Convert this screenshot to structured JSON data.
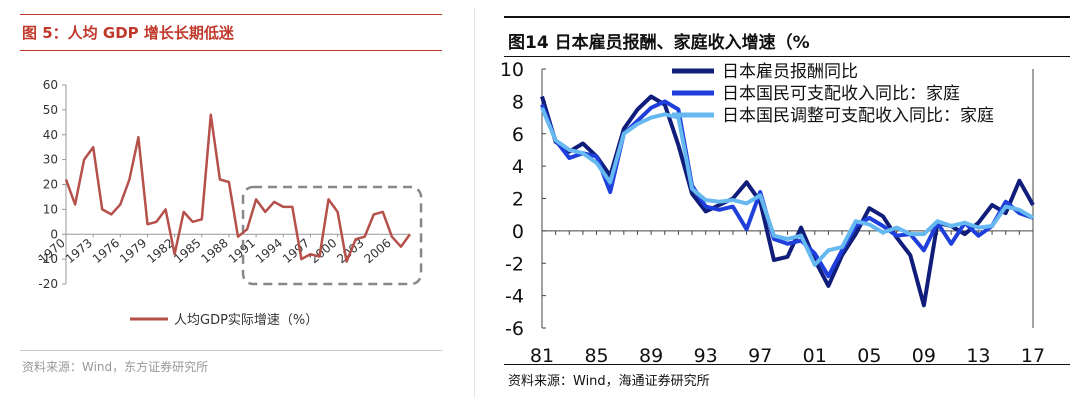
{
  "left": {
    "title": "图 5：人均 GDP 增长长期低迷",
    "source": "资料来源：Wind，东方证券研究所",
    "accent": "#c0392b"
  },
  "right": {
    "title": "图14 日本雇员报酬、家庭收入增速（%",
    "source": "资料来源：Wind，海通证券研究所"
  },
  "chart_data": [
    {
      "type": "line",
      "title": "",
      "xlabel": "",
      "ylabel": "",
      "ylim": [
        -20,
        60
      ],
      "yticks": [
        -20,
        -10,
        0,
        10,
        20,
        30,
        40,
        50,
        60
      ],
      "xticks": [
        "1970",
        "1973",
        "1976",
        "1979",
        "1982",
        "1985",
        "1988",
        "1991",
        "1994",
        "1997",
        "2000",
        "2003",
        "2006"
      ],
      "grid": false,
      "legend": "bottom",
      "highlight_box": {
        "from": 1990,
        "to": 2009
      },
      "series": [
        {
          "name": "人均GDP实际增速（%）",
          "color": "#b5504a",
          "x": [
            1970,
            1971,
            1972,
            1973,
            1974,
            1975,
            1976,
            1977,
            1978,
            1979,
            1980,
            1981,
            1982,
            1983,
            1984,
            1985,
            1986,
            1987,
            1988,
            1989,
            1990,
            1991,
            1992,
            1993,
            1994,
            1995,
            1996,
            1997,
            1998,
            1999,
            2000,
            2001,
            2002,
            2003,
            2004,
            2005,
            2006,
            2007,
            2008
          ],
          "values": [
            22,
            12,
            30,
            35,
            10,
            8,
            12,
            22,
            39,
            4,
            5,
            10,
            -8,
            9,
            5,
            6,
            48,
            22,
            21,
            -1,
            2,
            14,
            9,
            13,
            11,
            11,
            -10,
            -8,
            -9,
            14,
            9,
            -11,
            -2,
            -1,
            8,
            9,
            -1,
            -5,
            0
          ]
        }
      ]
    },
    {
      "type": "line",
      "title": "",
      "xlabel": "",
      "ylabel": "",
      "ylim": [
        -6,
        10
      ],
      "yticks": [
        -6,
        -4,
        -2,
        0,
        2,
        4,
        6,
        8,
        10
      ],
      "xticks": [
        "81",
        "85",
        "89",
        "93",
        "97",
        "01",
        "05",
        "09",
        "13",
        "17"
      ],
      "grid": false,
      "legend": "top",
      "series": [
        {
          "name": "日本雇员报酬同比",
          "color": "#101d7a",
          "x": [
            1981,
            1982,
            1983,
            1984,
            1985,
            1986,
            1987,
            1988,
            1989,
            1990,
            1991,
            1992,
            1993,
            1994,
            1995,
            1996,
            1997,
            1998,
            1999,
            2000,
            2001,
            2002,
            2003,
            2004,
            2005,
            2006,
            2007,
            2008,
            2009,
            2010,
            2011,
            2012,
            2013,
            2014,
            2015,
            2016,
            2017
          ],
          "values": [
            8.3,
            5.5,
            4.9,
            5.4,
            4.6,
            3.4,
            6.3,
            7.5,
            8.3,
            7.8,
            5.3,
            2.3,
            1.2,
            1.6,
            2.0,
            3.0,
            1.8,
            -1.8,
            -1.6,
            0.2,
            -1.8,
            -3.4,
            -1.5,
            -0.2,
            1.4,
            0.9,
            -0.4,
            -1.5,
            -4.6,
            0.5,
            0.3,
            -0.2,
            0.5,
            1.6,
            1.1,
            3.1,
            1.6
          ]
        },
        {
          "name": "日本国民可支配收入同比：家庭",
          "color": "#1f3fdc",
          "x": [
            1981,
            1982,
            1983,
            1984,
            1985,
            1986,
            1987,
            1988,
            1989,
            1990,
            1991,
            1992,
            1993,
            1994,
            1995,
            1996,
            1997,
            1998,
            1999,
            2000,
            2001,
            2002,
            2003,
            2004,
            2005,
            2006,
            2007,
            2008,
            2009,
            2010,
            2011,
            2012,
            2013,
            2014,
            2015,
            2016,
            2017
          ],
          "values": [
            7.8,
            5.6,
            4.5,
            4.8,
            4.6,
            2.4,
            6.0,
            6.8,
            7.6,
            8.0,
            7.5,
            2.8,
            1.5,
            1.3,
            1.5,
            0.1,
            2.4,
            -0.5,
            -0.8,
            -0.6,
            -1.4,
            -2.8,
            -1.2,
            0.3,
            0.8,
            0.3,
            -0.3,
            -0.2,
            -1.2,
            0.5,
            -0.8,
            0.5,
            -0.3,
            0.3,
            1.8,
            1.1,
            0.8
          ]
        },
        {
          "name": "日本国民调整可支配收入同比：家庭",
          "color": "#66b8f0",
          "x": [
            1981,
            1982,
            1983,
            1984,
            1985,
            1986,
            1987,
            1988,
            1989,
            1990,
            1991,
            1992,
            1993,
            1994,
            1995,
            1996,
            1997,
            1998,
            1999,
            2000,
            2001,
            2002,
            2003,
            2004,
            2005,
            2006,
            2007,
            2008,
            2009,
            2010,
            2011,
            2012,
            2013,
            2014,
            2015,
            2016,
            2017
          ],
          "values": [
            7.6,
            5.6,
            5.0,
            4.8,
            4.2,
            3.0,
            6.0,
            6.6,
            7.0,
            7.2,
            7.0,
            2.6,
            1.9,
            1.8,
            1.9,
            1.7,
            2.2,
            -0.3,
            -0.5,
            -0.3,
            -2.1,
            -1.2,
            -1.0,
            0.6,
            0.4,
            -0.1,
            0.2,
            -0.2,
            -0.2,
            0.6,
            0.3,
            0.5,
            0.2,
            0.3,
            1.5,
            1.3,
            0.8
          ]
        }
      ]
    }
  ]
}
